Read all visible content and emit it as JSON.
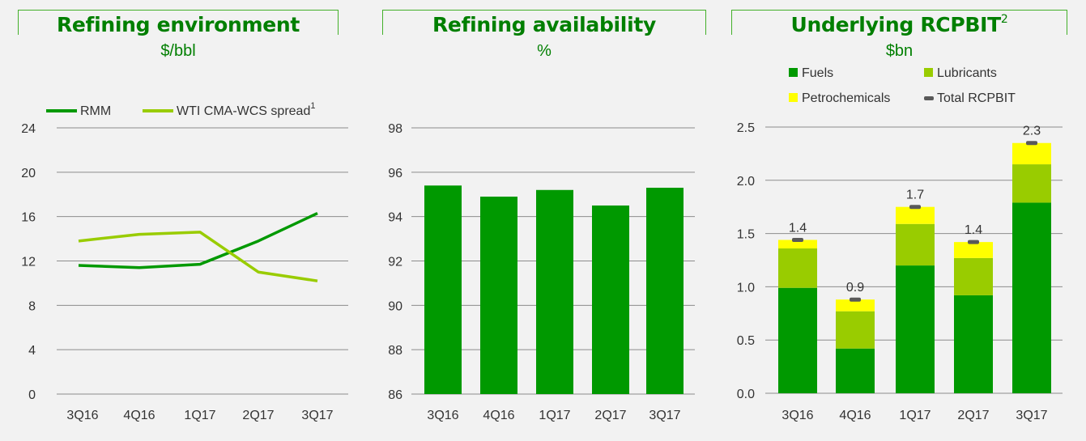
{
  "colors": {
    "background": "#f2f2f2",
    "title": "#007f00",
    "dark_green": "#009900",
    "light_green": "#99cc00",
    "yellow": "#ffff00",
    "total_marker": "#595959",
    "grid": "#8c8c8c"
  },
  "chart_data": [
    {
      "type": "line",
      "title": "Refining environment",
      "unit": "$/bbl",
      "categories": [
        "3Q16",
        "4Q16",
        "1Q17",
        "2Q17",
        "3Q17"
      ],
      "ylim": [
        0,
        24
      ],
      "yticks": [
        0,
        4,
        8,
        12,
        16,
        20,
        24
      ],
      "grid": true,
      "legend_position": "top-left",
      "series": [
        {
          "name": "RMM",
          "color": "#009900",
          "values": [
            11.6,
            11.4,
            11.7,
            13.8,
            16.3
          ]
        },
        {
          "name": "WTI CMA-WCS spread",
          "name_sup": "1",
          "color": "#99cc00",
          "values": [
            13.8,
            14.4,
            14.6,
            11.0,
            10.2
          ]
        }
      ]
    },
    {
      "type": "bar",
      "title": "Refining availability",
      "unit": "%",
      "categories": [
        "3Q16",
        "4Q16",
        "1Q17",
        "2Q17",
        "3Q17"
      ],
      "ylim": [
        86,
        98
      ],
      "yticks": [
        86,
        88,
        90,
        92,
        94,
        96,
        98
      ],
      "grid": true,
      "color": "#009900",
      "values": [
        95.4,
        94.9,
        95.2,
        94.5,
        95.3
      ]
    },
    {
      "type": "bar",
      "stacked": true,
      "title": "Underlying RCPBIT",
      "title_sup": "2",
      "unit": "$bn",
      "categories": [
        "3Q16",
        "4Q16",
        "1Q17",
        "2Q17",
        "3Q17"
      ],
      "ylim": [
        0,
        2.5
      ],
      "yticks": [
        "0.0",
        "0.5",
        "1.0",
        "1.5",
        "2.0",
        "2.5"
      ],
      "grid": true,
      "legend_position": "top",
      "series": [
        {
          "name": "Fuels",
          "color": "#009900",
          "values": [
            0.99,
            0.42,
            1.2,
            0.92,
            1.79
          ]
        },
        {
          "name": "Lubricants",
          "color": "#99cc00",
          "values": [
            0.37,
            0.35,
            0.39,
            0.35,
            0.36
          ]
        },
        {
          "name": "Petrochemicals",
          "color": "#ffff00",
          "values": [
            0.08,
            0.11,
            0.16,
            0.15,
            0.2
          ]
        }
      ],
      "total_name": "Total RCPBIT",
      "totals": [
        1.44,
        0.88,
        1.75,
        1.42,
        2.35
      ],
      "total_labels": [
        "1.4",
        "0.9",
        "1.7",
        "1.4",
        "2.3"
      ]
    }
  ]
}
